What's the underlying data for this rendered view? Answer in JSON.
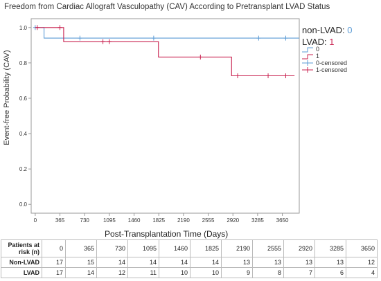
{
  "title": "Freedom from Cardiac Allograft Vasculopathy (CAV) According to Pretransplant LVAD Status",
  "colors": {
    "group0": "#5b9bd5",
    "group1": "#c9214f",
    "axis": "#9a9a9a"
  },
  "annotation": {
    "rows": [
      {
        "label": "non-LVAD:",
        "value": "0"
      },
      {
        "label": "LVAD:",
        "value": "1"
      }
    ]
  },
  "legend": [
    "0",
    "1",
    "0-censored",
    "1-censored"
  ],
  "chart_data": {
    "type": "line",
    "title": "Freedom from Cardiac Allograft Vasculopathy (CAV) According to Pretransplant LVAD Status",
    "xlabel": "Post-Transplantation Time (Days)",
    "ylabel": "Event-free Probability (CAV)",
    "xlim": [
      -60,
      3900
    ],
    "ylim": [
      -0.05,
      1.05
    ],
    "x_ticks": [
      "0",
      "365",
      "730",
      "1095",
      "1460",
      "1825",
      "2190",
      "2555",
      "2920",
      "3285",
      "3650"
    ],
    "y_ticks": [
      "0.0",
      "0.2",
      "0.4",
      "0.6",
      "0.8",
      "1.0"
    ],
    "grid": false,
    "legend_position": "right",
    "series": [
      {
        "name": "0",
        "steps": [
          [
            0,
            1.0
          ],
          [
            130,
            0.94
          ],
          [
            3900,
            0.94
          ]
        ],
        "censored": [
          [
            0,
            1.0
          ],
          [
            660,
            0.94
          ],
          [
            1750,
            0.94
          ],
          [
            3300,
            0.94
          ],
          [
            3700,
            0.94
          ]
        ]
      },
      {
        "name": "1",
        "steps": [
          [
            0,
            1.0
          ],
          [
            420,
            0.92
          ],
          [
            1820,
            0.833
          ],
          [
            2900,
            0.727
          ],
          [
            3830,
            0.727
          ]
        ],
        "censored": [
          [
            30,
            1.0
          ],
          [
            365,
            1.0
          ],
          [
            1000,
            0.92
          ],
          [
            1095,
            0.92
          ],
          [
            2440,
            0.833
          ],
          [
            2990,
            0.727
          ],
          [
            3440,
            0.727
          ],
          [
            3700,
            0.727
          ]
        ]
      }
    ]
  },
  "risk_table": {
    "header": "Patients at risk (n)",
    "times": [
      "0",
      "365",
      "730",
      "1095",
      "1460",
      "1825",
      "2190",
      "2555",
      "2920",
      "3285",
      "3650"
    ],
    "rows": [
      {
        "label": "Non-LVAD",
        "values": [
          "17",
          "15",
          "14",
          "14",
          "14",
          "14",
          "13",
          "13",
          "13",
          "13",
          "12"
        ]
      },
      {
        "label": "LVAD",
        "values": [
          "17",
          "14",
          "12",
          "11",
          "10",
          "10",
          "9",
          "8",
          "7",
          "6",
          "4"
        ]
      }
    ]
  }
}
